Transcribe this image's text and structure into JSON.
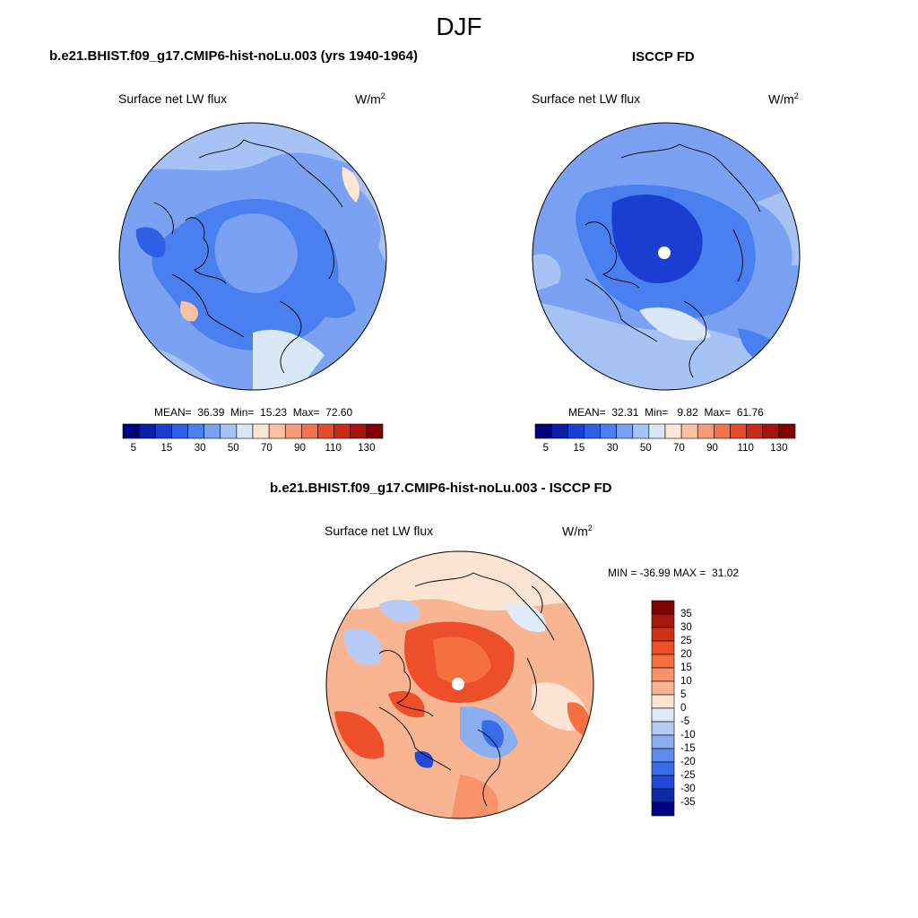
{
  "figure": {
    "season_title": "DJF"
  },
  "panels": {
    "model": {
      "title": "b.e21.BHIST.f09_g17.CMIP6-hist-noLu.003 (yrs 1940-1964)",
      "variable": "Surface net LW flux",
      "units_base": "W/m",
      "units_exp": "2",
      "mean_label": "MEAN=",
      "mean": "36.39",
      "min_label": "Min=",
      "min": "15.23",
      "max_label": "Max=",
      "max": "72.60"
    },
    "obs": {
      "title": "ISCCP FD",
      "variable": "Surface net LW flux",
      "units_base": "W/m",
      "units_exp": "2",
      "mean_label": "MEAN=",
      "mean": "32.31",
      "min_label": "Min=",
      "min": "9.82",
      "max_label": "Max=",
      "max": "61.76"
    },
    "diff": {
      "title": "b.e21.BHIST.f09_g17.CMIP6-hist-noLu.003 - ISCCP FD",
      "variable": "Surface net LW flux",
      "units_base": "W/m",
      "units_exp": "2",
      "minmax_text": "MIN = -36.99 MAX =  31.02"
    }
  },
  "colorbars": {
    "abs": {
      "colors": [
        "#00007f",
        "#0a1ea8",
        "#1a3fd0",
        "#2e5fe6",
        "#4a7ff0",
        "#7ba2f2",
        "#a7c3f5",
        "#d9e8f7",
        "#fde7d4",
        "#fbc1a0",
        "#f79b76",
        "#f1744f",
        "#e84a2c",
        "#cc2a16",
        "#a6140d",
        "#800000"
      ],
      "tick_labels": [
        "5",
        "15",
        "30",
        "50",
        "70",
        "90",
        "110",
        "130"
      ]
    },
    "diff": {
      "colors": [
        "#800000",
        "#a8170e",
        "#d0301a",
        "#ec4f2a",
        "#f4703f",
        "#f7926a",
        "#f9b592",
        "#fde3d1",
        "#dfeafa",
        "#b5cbf5",
        "#8aaef0",
        "#5c8cec",
        "#3b6be6",
        "#2148d6",
        "#0f2aa8",
        "#00007f"
      ],
      "tick_labels": [
        "35",
        "30",
        "25",
        "20",
        "15",
        "10",
        "5",
        "0",
        "-5",
        "-10",
        "-15",
        "-20",
        "-25",
        "-30",
        "-35"
      ]
    }
  }
}
